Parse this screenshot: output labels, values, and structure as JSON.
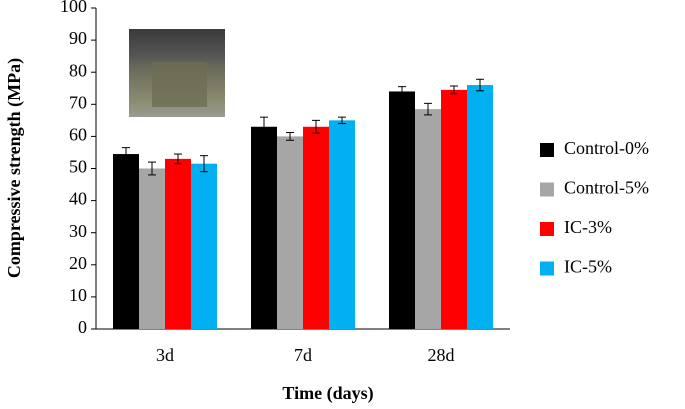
{
  "chart_data": {
    "type": "bar",
    "categories": [
      "3d",
      "7d",
      "28d"
    ],
    "series": [
      {
        "name": "Control-0%",
        "color": "#000000",
        "values": [
          54.5,
          63,
          74
        ],
        "errors": [
          2,
          3,
          1.5
        ]
      },
      {
        "name": "Control-5%",
        "color": "#a6a6a6",
        "values": [
          50,
          60,
          68.5
        ],
        "errors": [
          2,
          1.2,
          1.8
        ]
      },
      {
        "name": "IC-3%",
        "color": "#ff0000",
        "values": [
          53,
          63,
          74.5
        ],
        "errors": [
          1.5,
          2,
          1.2
        ]
      },
      {
        "name": "IC-5%",
        "color": "#00b0f0",
        "values": [
          51.5,
          65,
          76
        ],
        "errors": [
          2.5,
          1,
          1.8
        ]
      }
    ],
    "ylim": [
      0,
      100
    ],
    "yticks": [
      0,
      10,
      20,
      30,
      40,
      50,
      60,
      70,
      80,
      90,
      100
    ],
    "xlabel": "Time (days)",
    "ylabel": "Compressive strength (MPa)",
    "legend": "right",
    "grid": false
  }
}
